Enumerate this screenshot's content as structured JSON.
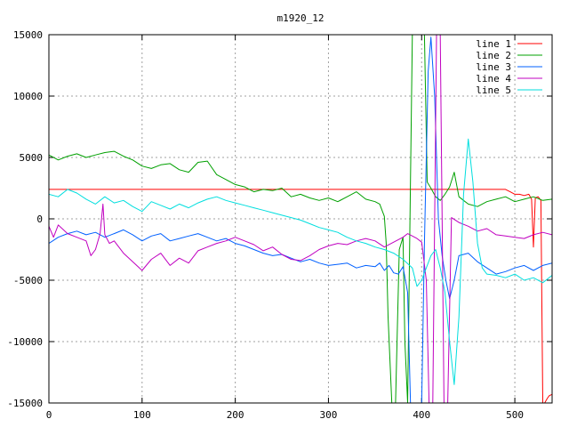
{
  "chart_data": {
    "type": "line",
    "title": "m1920_12",
    "xlabel": "",
    "ylabel": "",
    "xlim": [
      0,
      540
    ],
    "ylim": [
      -15000,
      15000
    ],
    "xticks": [
      0,
      100,
      200,
      300,
      400,
      500
    ],
    "yticks": [
      -15000,
      -10000,
      -5000,
      0,
      5000,
      10000,
      15000
    ],
    "grid": true,
    "legend_position": "top-right",
    "series": [
      {
        "name": "line 1",
        "color": "#ff0000",
        "x": [
          0,
          100,
          200,
          300,
          400,
          490,
          495,
          500,
          505,
          510,
          515,
          518,
          520,
          522,
          525,
          528,
          530,
          532,
          535,
          537,
          540
        ],
        "y": [
          2400,
          2400,
          2400,
          2400,
          2400,
          2400,
          2200,
          2000,
          2000,
          1900,
          2000,
          1600,
          -2300,
          1700,
          1800,
          1500,
          -15000,
          -15000,
          -14600,
          -14400,
          -14300
        ]
      },
      {
        "name": "line 2",
        "color": "#00a000",
        "x": [
          0,
          10,
          20,
          30,
          40,
          50,
          60,
          70,
          80,
          90,
          100,
          110,
          120,
          130,
          140,
          150,
          160,
          170,
          180,
          190,
          200,
          210,
          220,
          230,
          240,
          250,
          260,
          270,
          280,
          290,
          300,
          310,
          320,
          330,
          340,
          350,
          355,
          360,
          362,
          364,
          368,
          372,
          376,
          380,
          382,
          385,
          390,
          395,
          400,
          403,
          406,
          410,
          415,
          420,
          425,
          430,
          435,
          440,
          445,
          450,
          460,
          470,
          480,
          490,
          500,
          510,
          520,
          530,
          540
        ],
        "y": [
          5200,
          4800,
          5100,
          5300,
          5000,
          5200,
          5400,
          5500,
          5100,
          4800,
          4300,
          4100,
          4400,
          4500,
          4000,
          3800,
          4600,
          4700,
          3600,
          3200,
          2800,
          2600,
          2200,
          2400,
          2300,
          2500,
          1800,
          2000,
          1700,
          1500,
          1700,
          1400,
          1800,
          2200,
          1600,
          1400,
          1200,
          200,
          -2000,
          -8000,
          -15000,
          -15000,
          -2500,
          -1500,
          -10000,
          -15000,
          15000,
          15000,
          15000,
          15000,
          3000,
          2500,
          1800,
          1500,
          2000,
          2600,
          3800,
          1800,
          1500,
          1200,
          1000,
          1400,
          1600,
          1800,
          1400,
          1600,
          1800,
          1500,
          1600
        ]
      },
      {
        "name": "line 3",
        "color": "#0060ff",
        "x": [
          0,
          10,
          20,
          30,
          40,
          50,
          60,
          70,
          80,
          90,
          100,
          110,
          120,
          130,
          140,
          150,
          160,
          170,
          180,
          190,
          200,
          210,
          220,
          230,
          240,
          250,
          260,
          270,
          280,
          290,
          300,
          310,
          320,
          330,
          340,
          350,
          355,
          360,
          365,
          370,
          375,
          380,
          385,
          388,
          390,
          395,
          400,
          403,
          407,
          410,
          414,
          418,
          422,
          426,
          430,
          435,
          440,
          450,
          460,
          470,
          480,
          490,
          500,
          510,
          520,
          530,
          540
        ],
        "y": [
          -2000,
          -1500,
          -1200,
          -1000,
          -1300,
          -1100,
          -1500,
          -1200,
          -900,
          -1300,
          -1800,
          -1400,
          -1200,
          -1800,
          -1600,
          -1400,
          -1200,
          -1500,
          -1800,
          -1600,
          -2000,
          -2200,
          -2500,
          -2800,
          -3000,
          -2900,
          -3200,
          -3500,
          -3300,
          -3600,
          -3800,
          -3700,
          -3600,
          -4000,
          -3800,
          -3900,
          -3600,
          -4200,
          -3800,
          -4400,
          -4500,
          -3900,
          -6000,
          -15000,
          -15000,
          -15000,
          -15000,
          -2000,
          12000,
          14800,
          10000,
          0,
          -3000,
          -5000,
          -6500,
          -5000,
          -3000,
          -2800,
          -3500,
          -4000,
          -4500,
          -4300,
          -4000,
          -3800,
          -4200,
          -3800,
          -3600
        ]
      },
      {
        "name": "line 4",
        "color": "#c000c0",
        "x": [
          0,
          5,
          10,
          20,
          30,
          40,
          45,
          50,
          55,
          58,
          60,
          65,
          70,
          80,
          90,
          100,
          110,
          120,
          130,
          140,
          150,
          160,
          170,
          180,
          190,
          200,
          210,
          220,
          230,
          240,
          250,
          260,
          270,
          280,
          290,
          300,
          310,
          320,
          330,
          340,
          350,
          360,
          370,
          380,
          385,
          390,
          395,
          400,
          405,
          408,
          412,
          416,
          420,
          424,
          428,
          432,
          440,
          450,
          460,
          470,
          480,
          490,
          500,
          510,
          520,
          530,
          540
        ],
        "y": [
          -600,
          -1500,
          -500,
          -1200,
          -1500,
          -1800,
          -3000,
          -2500,
          -1200,
          1200,
          -1300,
          -2000,
          -1800,
          -2800,
          -3500,
          -4200,
          -3300,
          -2800,
          -3800,
          -3200,
          -3600,
          -2600,
          -2300,
          -2000,
          -1800,
          -1500,
          -1800,
          -2100,
          -2600,
          -2300,
          -2900,
          -3300,
          -3400,
          -3000,
          -2500,
          -2200,
          -2000,
          -2100,
          -1800,
          -1600,
          -1800,
          -2300,
          -1900,
          -1500,
          -1200,
          -1400,
          -1600,
          -1900,
          -5000,
          -15000,
          -15000,
          15000,
          15000,
          -15000,
          -15000,
          100,
          -300,
          -600,
          -1000,
          -800,
          -1300,
          -1400,
          -1500,
          -1600,
          -1300,
          -1100,
          -1300
        ]
      },
      {
        "name": "line 5",
        "color": "#00dede",
        "x": [
          0,
          10,
          20,
          30,
          40,
          50,
          60,
          70,
          80,
          90,
          100,
          110,
          120,
          130,
          140,
          150,
          160,
          170,
          180,
          190,
          200,
          210,
          220,
          230,
          240,
          250,
          260,
          270,
          280,
          290,
          300,
          310,
          320,
          330,
          340,
          350,
          360,
          370,
          380,
          390,
          395,
          400,
          405,
          410,
          415,
          420,
          425,
          430,
          435,
          440,
          445,
          450,
          455,
          460,
          465,
          470,
          480,
          490,
          500,
          510,
          520,
          530,
          540
        ],
        "y": [
          2000,
          1800,
          2400,
          2100,
          1600,
          1200,
          1800,
          1300,
          1500,
          1000,
          600,
          1400,
          1100,
          800,
          1200,
          900,
          1300,
          1600,
          1800,
          1500,
          1300,
          1100,
          900,
          700,
          500,
          300,
          100,
          -100,
          -400,
          -700,
          -900,
          -1100,
          -1500,
          -1800,
          -2000,
          -2300,
          -2500,
          -2800,
          -3300,
          -4000,
          -5500,
          -5000,
          -4000,
          -3000,
          -2500,
          -4000,
          -6000,
          -10000,
          -13500,
          -8000,
          2000,
          6500,
          3000,
          -2000,
          -4000,
          -4500,
          -4600,
          -4800,
          -4500,
          -5000,
          -4800,
          -5200,
          -4600
        ]
      }
    ]
  }
}
